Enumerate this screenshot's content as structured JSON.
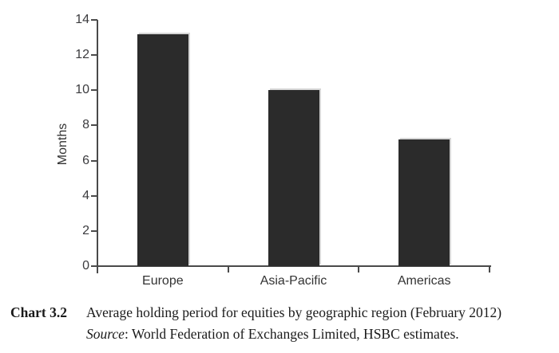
{
  "figure": {
    "caption_label": "Chart 3.2",
    "caption_title": "Average holding period for equities by geographic region (February 2012)",
    "source_label": "Source",
    "source_text": ": World Federation of Exchanges Limited, HSBC estimates."
  },
  "chart_data": {
    "type": "bar",
    "categories": [
      "Europe",
      "Asia-Pacific",
      "Americas"
    ],
    "values": [
      13.2,
      10,
      7.2
    ],
    "title": "Average holding period for equities by geographic region (February 2012)",
    "xlabel": "",
    "ylabel": "Months",
    "ylim": [
      0,
      14
    ],
    "ytick_step": 2,
    "grid": false,
    "legend": "none",
    "bar_color": "#2b2b2b"
  },
  "colors": {
    "bar": "#2b2b2b",
    "axis": "#4a4a4a",
    "caption_text": "#1a1a1a"
  }
}
